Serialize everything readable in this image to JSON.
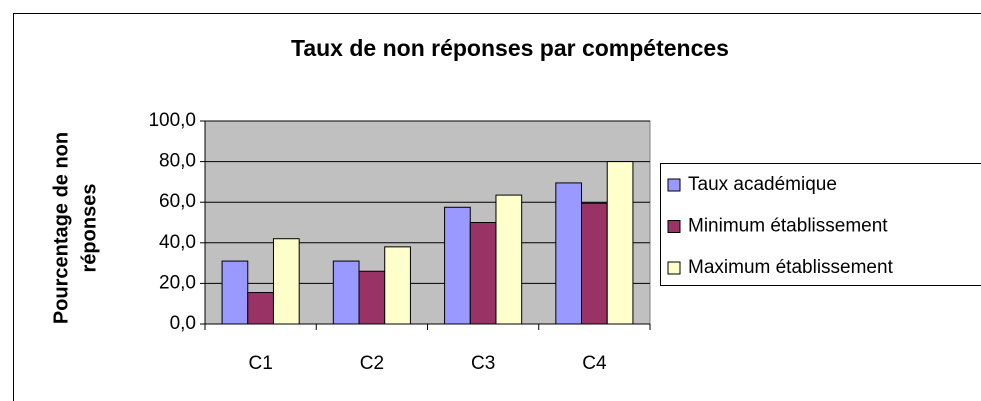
{
  "chart_data": {
    "type": "bar",
    "title": "Taux de non réponses par compétences",
    "ylabel": [
      "Pourcentage de non",
      "réponses"
    ],
    "categories": [
      "C1",
      "C2",
      "C3",
      "C4"
    ],
    "series": [
      {
        "name": "Taux académique",
        "color": "#9999ff",
        "values": [
          31,
          31,
          57.5,
          69.5
        ]
      },
      {
        "name": "Minimum établissement",
        "color": "#993366",
        "values": [
          15.5,
          26,
          50,
          59.5
        ]
      },
      {
        "name": "Maximum établissement",
        "color": "#ffffcc",
        "values": [
          42,
          38,
          63.5,
          80
        ]
      }
    ],
    "ylim": [
      0,
      100
    ],
    "yticks": [
      {
        "value": 0,
        "label": "0,0"
      },
      {
        "value": 20,
        "label": "20,0"
      },
      {
        "value": 40,
        "label": "40,0"
      },
      {
        "value": 60,
        "label": "60,0"
      },
      {
        "value": 80,
        "label": "80,0"
      },
      {
        "value": 100,
        "label": "100,0"
      }
    ],
    "grid": true,
    "legend": "right"
  }
}
